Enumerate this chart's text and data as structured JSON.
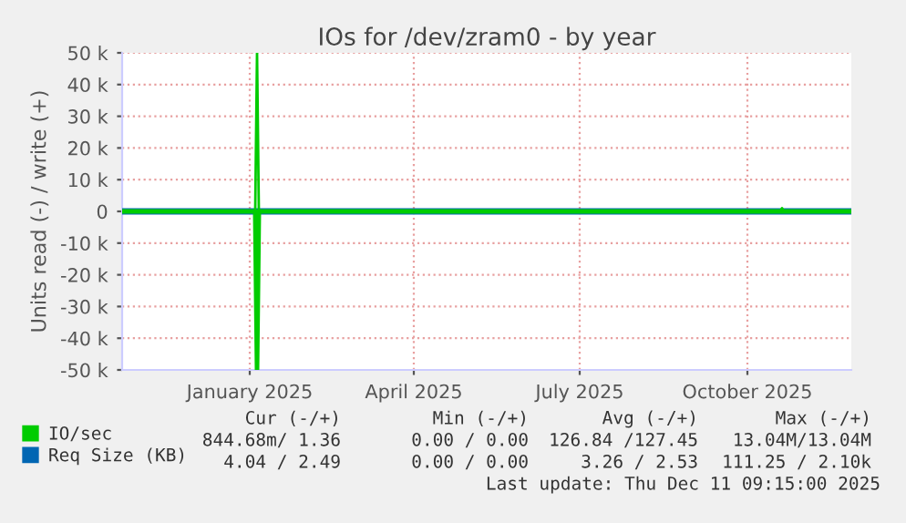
{
  "chart_data": {
    "type": "line",
    "title": "IOs for /dev/zram0 - by year",
    "ylabel": "Units read (-) / write (+)",
    "x": [
      "2024-11-06",
      "2025-01-18",
      "2025-01-19",
      "2025-01-20",
      "2025-11-02",
      "2025-11-03",
      "2025-11-04",
      "2025-12-11"
    ],
    "series": [
      {
        "name": "IO/sec",
        "color": "#00cc00",
        "values": [
          0,
          0,
          50000,
          0,
          0,
          1000,
          0,
          0
        ]
      },
      {
        "color": "#00cc00",
        "values": [
          0,
          0,
          -50000,
          0,
          0,
          0,
          0,
          0
        ]
      },
      {
        "name": "Req Size (KB)",
        "color": "#0066b3",
        "values": [
          0,
          0,
          0,
          0,
          0,
          0,
          0,
          0
        ]
      }
    ],
    "xlim": [
      "2024-11-06",
      "2025-12-11"
    ],
    "xticks": [
      {
        "value": "2025-01-15",
        "label": "January 2025"
      },
      {
        "value": "2025-04-15",
        "label": "April 2025"
      },
      {
        "value": "2025-07-15",
        "label": "July 2025"
      },
      {
        "value": "2025-10-15",
        "label": "October 2025"
      }
    ],
    "ylim": [
      -50000,
      50000
    ],
    "yticks": [
      {
        "value": -50000,
        "label": "-50 k"
      },
      {
        "value": -40000,
        "label": "-40 k"
      },
      {
        "value": -30000,
        "label": "-30 k"
      },
      {
        "value": -20000,
        "label": "-20 k"
      },
      {
        "value": -10000,
        "label": "-10 k"
      },
      0,
      {
        "value": 10000,
        "label": "10 k"
      },
      {
        "value": 20000,
        "label": "20 k"
      },
      {
        "value": 30000,
        "label": "30 k"
      },
      {
        "value": 40000,
        "label": "40 k"
      },
      {
        "value": 50000,
        "label": "50 k"
      }
    ],
    "grid": true,
    "legend": "bottom",
    "annotations": [
      "Cur (-/+)",
      "Min (-/+)",
      "Avg (-/+)",
      "Max (-/+)",
      "844.68m/ 1.36",
      "0.00 / 0.00",
      "126.84 /127.45",
      "13.04M/13.04M",
      "4.04 / 2.49",
      "0.00 / 0.00",
      "3.26 / 2.53",
      "111.25 / 2.10k",
      "Last update: Thu Dec 11 09:15:00 2025"
    ]
  }
}
